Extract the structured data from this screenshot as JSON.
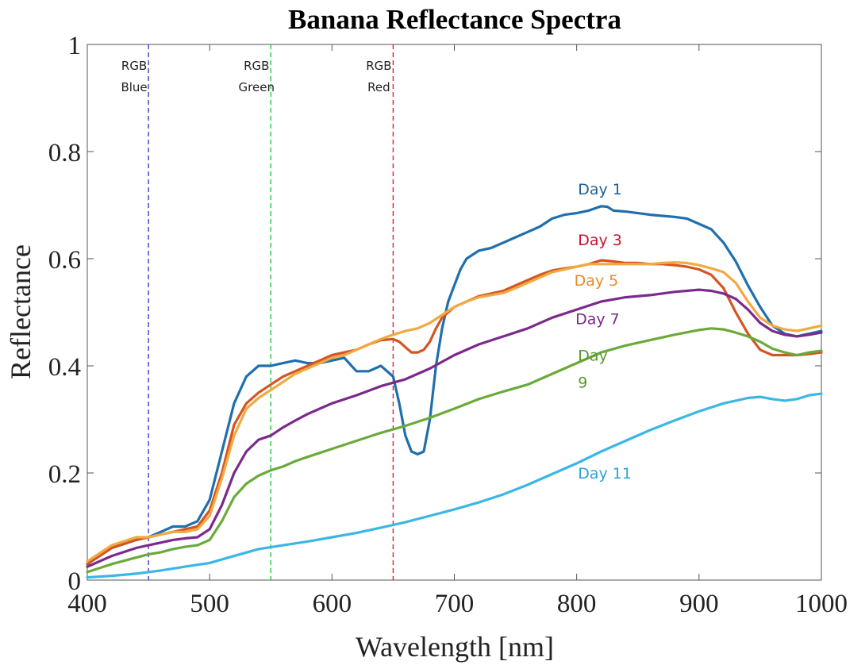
{
  "chart_data": {
    "type": "line",
    "title": "Banana Reflectance Spectra",
    "xlabel": "Wavelength [nm]",
    "ylabel": "Reflectance",
    "xlim": [
      400,
      1000
    ],
    "ylim": [
      0,
      1
    ],
    "xticks": [
      400,
      500,
      600,
      700,
      800,
      900,
      1000
    ],
    "xtick_labels": [
      "400",
      "500",
      "600",
      "700",
      "800",
      "900",
      "1000"
    ],
    "yticks": [
      0,
      0.2,
      0.4,
      0.6,
      0.8,
      1
    ],
    "ytick_labels": [
      "0",
      "0.2",
      "0.4",
      "0.6",
      "0.8",
      "1"
    ],
    "grid": false,
    "reference_lines": [
      {
        "x": 450,
        "label_lines": [
          "RGB",
          "Blue"
        ],
        "color": "#3b3bd6"
      },
      {
        "x": 550,
        "label_lines": [
          "RGB",
          "Green"
        ],
        "color": "#22cc44"
      },
      {
        "x": 650,
        "label_lines": [
          "RGB",
          "Red"
        ],
        "color": "#e0202a"
      }
    ],
    "series": [
      {
        "name": "Day 1",
        "label_lines": [
          "Day 1"
        ],
        "color": "#1f6fae",
        "label_color": "#1f5f99",
        "label_at": [
          801,
          0.72
        ],
        "x": [
          400,
          420,
          440,
          450,
          460,
          470,
          480,
          490,
          500,
          510,
          520,
          530,
          540,
          550,
          560,
          570,
          580,
          590,
          600,
          610,
          620,
          630,
          640,
          650,
          655,
          660,
          665,
          670,
          675,
          680,
          685,
          690,
          695,
          700,
          705,
          710,
          720,
          730,
          740,
          750,
          760,
          770,
          780,
          790,
          800,
          810,
          820,
          825,
          830,
          840,
          850,
          860,
          870,
          880,
          890,
          900,
          910,
          920,
          930,
          940,
          950,
          960,
          970,
          980,
          990,
          1000
        ],
        "y": [
          0.03,
          0.06,
          0.075,
          0.08,
          0.09,
          0.1,
          0.1,
          0.11,
          0.15,
          0.24,
          0.33,
          0.38,
          0.4,
          0.4,
          0.405,
          0.41,
          0.405,
          0.405,
          0.41,
          0.415,
          0.39,
          0.39,
          0.4,
          0.38,
          0.33,
          0.27,
          0.24,
          0.235,
          0.24,
          0.3,
          0.4,
          0.47,
          0.52,
          0.55,
          0.58,
          0.6,
          0.615,
          0.62,
          0.63,
          0.64,
          0.65,
          0.66,
          0.675,
          0.682,
          0.685,
          0.69,
          0.698,
          0.697,
          0.69,
          0.688,
          0.685,
          0.682,
          0.68,
          0.678,
          0.675,
          0.665,
          0.655,
          0.63,
          0.595,
          0.55,
          0.51,
          0.475,
          0.46,
          0.455,
          0.46,
          0.465
        ]
      },
      {
        "name": "Day 3",
        "label_lines": [
          "Day 3"
        ],
        "color": "#d45522",
        "label_color": "#c8102e",
        "label_at": [
          801,
          0.625
        ],
        "x": [
          400,
          420,
          440,
          450,
          460,
          470,
          480,
          490,
          500,
          510,
          520,
          530,
          540,
          550,
          560,
          570,
          580,
          590,
          600,
          610,
          620,
          630,
          640,
          650,
          655,
          660,
          665,
          670,
          675,
          680,
          685,
          690,
          700,
          710,
          720,
          730,
          740,
          750,
          760,
          770,
          780,
          790,
          800,
          810,
          820,
          830,
          840,
          850,
          860,
          870,
          880,
          890,
          900,
          910,
          920,
          930,
          940,
          950,
          960,
          970,
          980,
          990,
          1000
        ],
        "y": [
          0.03,
          0.06,
          0.075,
          0.08,
          0.085,
          0.09,
          0.095,
          0.1,
          0.13,
          0.2,
          0.29,
          0.33,
          0.35,
          0.365,
          0.38,
          0.39,
          0.4,
          0.41,
          0.42,
          0.425,
          0.43,
          0.44,
          0.448,
          0.45,
          0.445,
          0.435,
          0.425,
          0.425,
          0.43,
          0.445,
          0.47,
          0.49,
          0.51,
          0.52,
          0.53,
          0.535,
          0.54,
          0.55,
          0.56,
          0.57,
          0.578,
          0.582,
          0.585,
          0.59,
          0.597,
          0.595,
          0.592,
          0.592,
          0.59,
          0.59,
          0.588,
          0.585,
          0.58,
          0.57,
          0.545,
          0.5,
          0.46,
          0.43,
          0.42,
          0.42,
          0.42,
          0.422,
          0.425
        ]
      },
      {
        "name": "Day 5",
        "label_lines": [
          "Day 5"
        ],
        "color": "#f0aa40",
        "label_color": "#e88a30",
        "label_at": [
          798,
          0.55
        ],
        "x": [
          400,
          420,
          440,
          450,
          460,
          470,
          480,
          490,
          500,
          510,
          520,
          530,
          540,
          550,
          560,
          570,
          580,
          590,
          600,
          610,
          620,
          630,
          640,
          650,
          660,
          670,
          680,
          690,
          700,
          710,
          720,
          730,
          740,
          750,
          760,
          770,
          780,
          790,
          800,
          810,
          820,
          830,
          840,
          850,
          860,
          870,
          880,
          890,
          900,
          910,
          920,
          930,
          940,
          950,
          960,
          970,
          980,
          990,
          1000
        ],
        "y": [
          0.035,
          0.065,
          0.08,
          0.08,
          0.085,
          0.09,
          0.09,
          0.095,
          0.12,
          0.19,
          0.27,
          0.32,
          0.34,
          0.355,
          0.37,
          0.385,
          0.395,
          0.405,
          0.415,
          0.42,
          0.43,
          0.44,
          0.45,
          0.458,
          0.465,
          0.47,
          0.48,
          0.495,
          0.51,
          0.52,
          0.528,
          0.532,
          0.536,
          0.545,
          0.555,
          0.565,
          0.575,
          0.58,
          0.585,
          0.59,
          0.59,
          0.59,
          0.59,
          0.59,
          0.59,
          0.592,
          0.593,
          0.592,
          0.588,
          0.582,
          0.575,
          0.555,
          0.52,
          0.49,
          0.475,
          0.468,
          0.465,
          0.47,
          0.475
        ]
      },
      {
        "name": "Day 7",
        "label_lines": [
          "Day 7"
        ],
        "color": "#7b2a8c",
        "label_color": "#7b2a8c",
        "label_at": [
          799,
          0.478
        ],
        "x": [
          400,
          420,
          440,
          450,
          460,
          470,
          480,
          490,
          500,
          510,
          520,
          530,
          540,
          550,
          560,
          570,
          580,
          590,
          600,
          620,
          640,
          660,
          680,
          700,
          720,
          740,
          760,
          780,
          800,
          820,
          840,
          860,
          880,
          900,
          910,
          920,
          930,
          940,
          950,
          960,
          970,
          980,
          990,
          1000
        ],
        "y": [
          0.025,
          0.045,
          0.06,
          0.065,
          0.07,
          0.075,
          0.078,
          0.08,
          0.095,
          0.14,
          0.2,
          0.24,
          0.262,
          0.27,
          0.285,
          0.298,
          0.31,
          0.32,
          0.33,
          0.345,
          0.362,
          0.375,
          0.395,
          0.42,
          0.44,
          0.455,
          0.47,
          0.49,
          0.505,
          0.52,
          0.528,
          0.532,
          0.538,
          0.542,
          0.54,
          0.535,
          0.525,
          0.505,
          0.48,
          0.465,
          0.458,
          0.455,
          0.458,
          0.462
        ]
      },
      {
        "name": "Day 9",
        "label_lines": [
          "Day",
          "9"
        ],
        "color": "#6aaa3a",
        "label_color": "#5a9a30",
        "label_at": [
          801,
          0.41
        ],
        "x": [
          400,
          420,
          440,
          450,
          460,
          470,
          480,
          490,
          500,
          510,
          520,
          530,
          540,
          550,
          560,
          570,
          580,
          600,
          620,
          640,
          660,
          680,
          700,
          720,
          740,
          760,
          780,
          800,
          820,
          840,
          860,
          880,
          900,
          910,
          920,
          930,
          940,
          950,
          960,
          970,
          980,
          990,
          1000
        ],
        "y": [
          0.015,
          0.03,
          0.042,
          0.048,
          0.052,
          0.058,
          0.062,
          0.065,
          0.075,
          0.11,
          0.155,
          0.18,
          0.195,
          0.205,
          0.212,
          0.222,
          0.23,
          0.245,
          0.26,
          0.275,
          0.288,
          0.303,
          0.32,
          0.338,
          0.352,
          0.365,
          0.385,
          0.405,
          0.425,
          0.438,
          0.448,
          0.458,
          0.467,
          0.47,
          0.468,
          0.462,
          0.455,
          0.445,
          0.432,
          0.425,
          0.42,
          0.425,
          0.428
        ]
      },
      {
        "name": "Day 11",
        "label_lines": [
          "Day 11"
        ],
        "color": "#3bb6e6",
        "label_color": "#2ca3d8",
        "label_at": [
          801,
          0.19
        ],
        "x": [
          400,
          420,
          440,
          460,
          480,
          500,
          520,
          540,
          560,
          580,
          600,
          620,
          640,
          660,
          680,
          700,
          720,
          740,
          760,
          780,
          800,
          820,
          840,
          860,
          880,
          900,
          920,
          940,
          950,
          960,
          970,
          980,
          990,
          1000
        ],
        "y": [
          0.005,
          0.008,
          0.012,
          0.018,
          0.025,
          0.032,
          0.045,
          0.058,
          0.065,
          0.072,
          0.08,
          0.088,
          0.098,
          0.108,
          0.12,
          0.132,
          0.145,
          0.16,
          0.178,
          0.198,
          0.218,
          0.24,
          0.26,
          0.28,
          0.298,
          0.315,
          0.33,
          0.34,
          0.342,
          0.338,
          0.335,
          0.338,
          0.345,
          0.348
        ]
      }
    ]
  }
}
